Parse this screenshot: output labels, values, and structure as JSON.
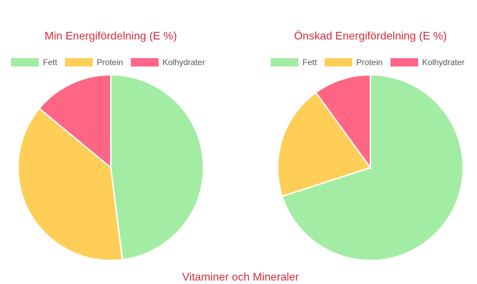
{
  "chart_data": [
    {
      "type": "pie",
      "title": "Min Energifördelning (E %)",
      "categories": [
        "Fett",
        "Protein",
        "Kolhydrater"
      ],
      "values": [
        48,
        38,
        14
      ],
      "colors": [
        "#a3eca3",
        "#ffce57",
        "#ff6584"
      ],
      "legend": "top",
      "unit": "E %"
    },
    {
      "type": "pie",
      "title": "Önskad Energifördelning (E %)",
      "categories": [
        "Fett",
        "Protein",
        "Kolhydrater"
      ],
      "values": [
        70,
        20,
        10
      ],
      "colors": [
        "#a3eca3",
        "#ffce57",
        "#ff6584"
      ],
      "legend": "top",
      "unit": "E %"
    }
  ],
  "section_heading": "Vitaminer och Mineraler"
}
